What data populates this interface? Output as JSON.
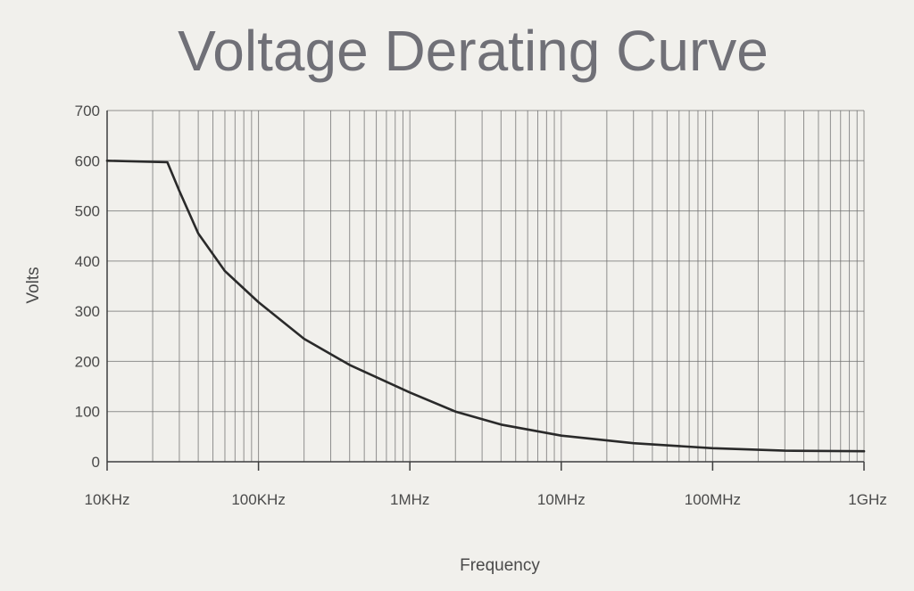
{
  "chart_data": {
    "type": "line",
    "title": "Voltage Derating Curve",
    "xlabel": "Frequency",
    "ylabel": "Volts",
    "x_scale": "log",
    "x_unit": "Hz",
    "xlim": [
      10000,
      1000000000
    ],
    "ylim": [
      0,
      700
    ],
    "y_ticks": [
      0,
      100,
      200,
      300,
      400,
      500,
      600,
      700
    ],
    "x_ticks": [
      {
        "value": 10000,
        "label": "10KHz"
      },
      {
        "value": 100000,
        "label": "100KHz"
      },
      {
        "value": 1000000,
        "label": "1MHz"
      },
      {
        "value": 10000000,
        "label": "10MHz"
      },
      {
        "value": 100000000,
        "label": "100MHz"
      },
      {
        "value": 1000000000,
        "label": "1GHz"
      }
    ],
    "grid": true,
    "series": [
      {
        "color": "#2a2a2a",
        "points": [
          {
            "x": 10000,
            "y": 600
          },
          {
            "x": 25000,
            "y": 597
          },
          {
            "x": 30000,
            "y": 540
          },
          {
            "x": 40000,
            "y": 455
          },
          {
            "x": 60000,
            "y": 380
          },
          {
            "x": 100000,
            "y": 318
          },
          {
            "x": 200000,
            "y": 245
          },
          {
            "x": 400000,
            "y": 193
          },
          {
            "x": 1000000,
            "y": 138
          },
          {
            "x": 2000000,
            "y": 100
          },
          {
            "x": 4000000,
            "y": 74
          },
          {
            "x": 10000000,
            "y": 52
          },
          {
            "x": 30000000,
            "y": 37
          },
          {
            "x": 100000000,
            "y": 27
          },
          {
            "x": 300000000,
            "y": 22
          },
          {
            "x": 1000000000,
            "y": 21
          }
        ]
      }
    ]
  }
}
